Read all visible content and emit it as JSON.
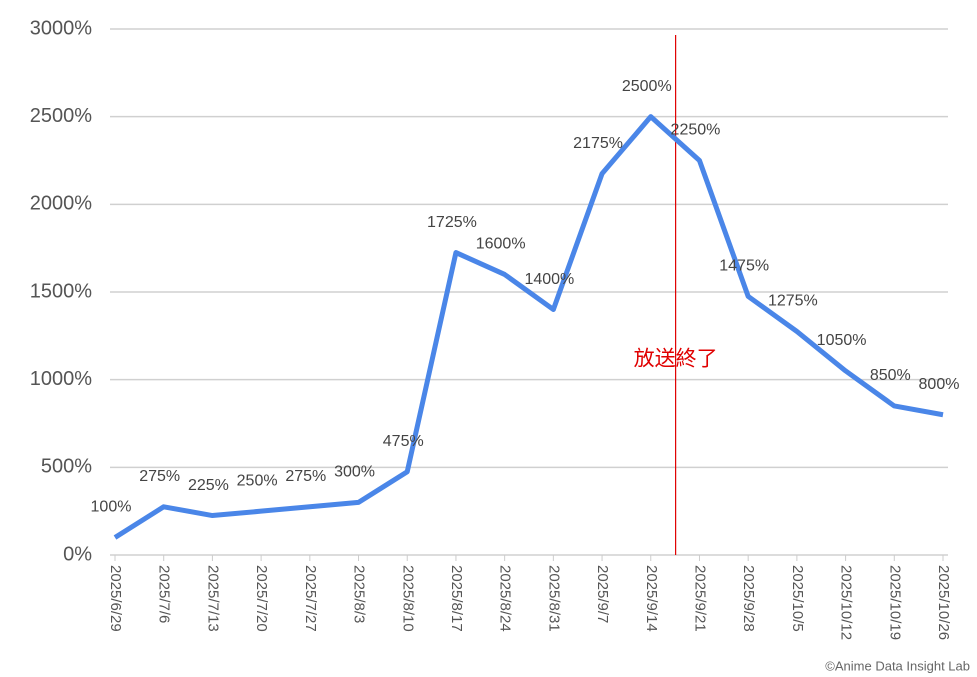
{
  "chart_data": {
    "type": "line",
    "categories": [
      "2025/6/29",
      "2025/7/6",
      "2025/7/13",
      "2025/7/20",
      "2025/7/27",
      "2025/8/3",
      "2025/8/10",
      "2025/8/17",
      "2025/8/24",
      "2025/8/31",
      "2025/9/7",
      "2025/9/14",
      "2025/9/21",
      "2025/9/28",
      "2025/10/5",
      "2025/10/12",
      "2025/10/19",
      "2025/10/26"
    ],
    "values": [
      100,
      275,
      225,
      250,
      275,
      300,
      475,
      1725,
      1600,
      1400,
      2175,
      2500,
      2250,
      1475,
      1275,
      1050,
      850,
      800
    ],
    "value_labels": [
      "100%",
      "275%",
      "225%",
      "250%",
      "275%",
      "300%",
      "475%",
      "1725%",
      "1600%",
      "1400%",
      "2175%",
      "2500%",
      "2250%",
      "1475%",
      "1275%",
      "1050%",
      "850%",
      "800%"
    ],
    "color": "#4a86e8",
    "ylim": [
      0,
      3000
    ],
    "yticks": [
      {
        "value": 0,
        "label": "0%"
      },
      {
        "value": 500,
        "label": "500%"
      },
      {
        "value": 1000,
        "label": "1000%"
      },
      {
        "value": 1500,
        "label": "1500%"
      },
      {
        "value": 2000,
        "label": "2000%"
      },
      {
        "value": 2500,
        "label": "2500%"
      },
      {
        "value": 3000,
        "label": "3000%"
      }
    ],
    "grid": true,
    "annotation": "放送終了",
    "annotation_color": "#e00000",
    "credit": "©Anime Data Insight Lab"
  }
}
